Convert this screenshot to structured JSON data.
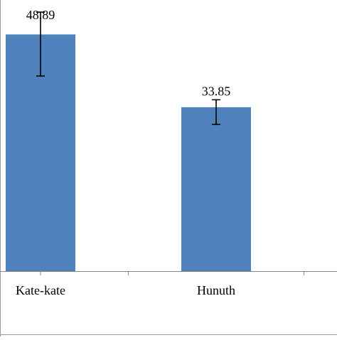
{
  "chart_data": {
    "type": "bar",
    "categories": [
      "Kate-kate",
      "Hunuth"
    ],
    "values": [
      48.89,
      33.85
    ],
    "data_labels": [
      "48.89",
      "33.85"
    ],
    "error": [
      {
        "low": 40.3,
        "high": 53.5
      },
      {
        "low": 30.3,
        "high": 35.4
      }
    ],
    "ylim": [
      0,
      56
    ],
    "grid": false,
    "legend": "none",
    "bar_color": "#4f81bd"
  }
}
